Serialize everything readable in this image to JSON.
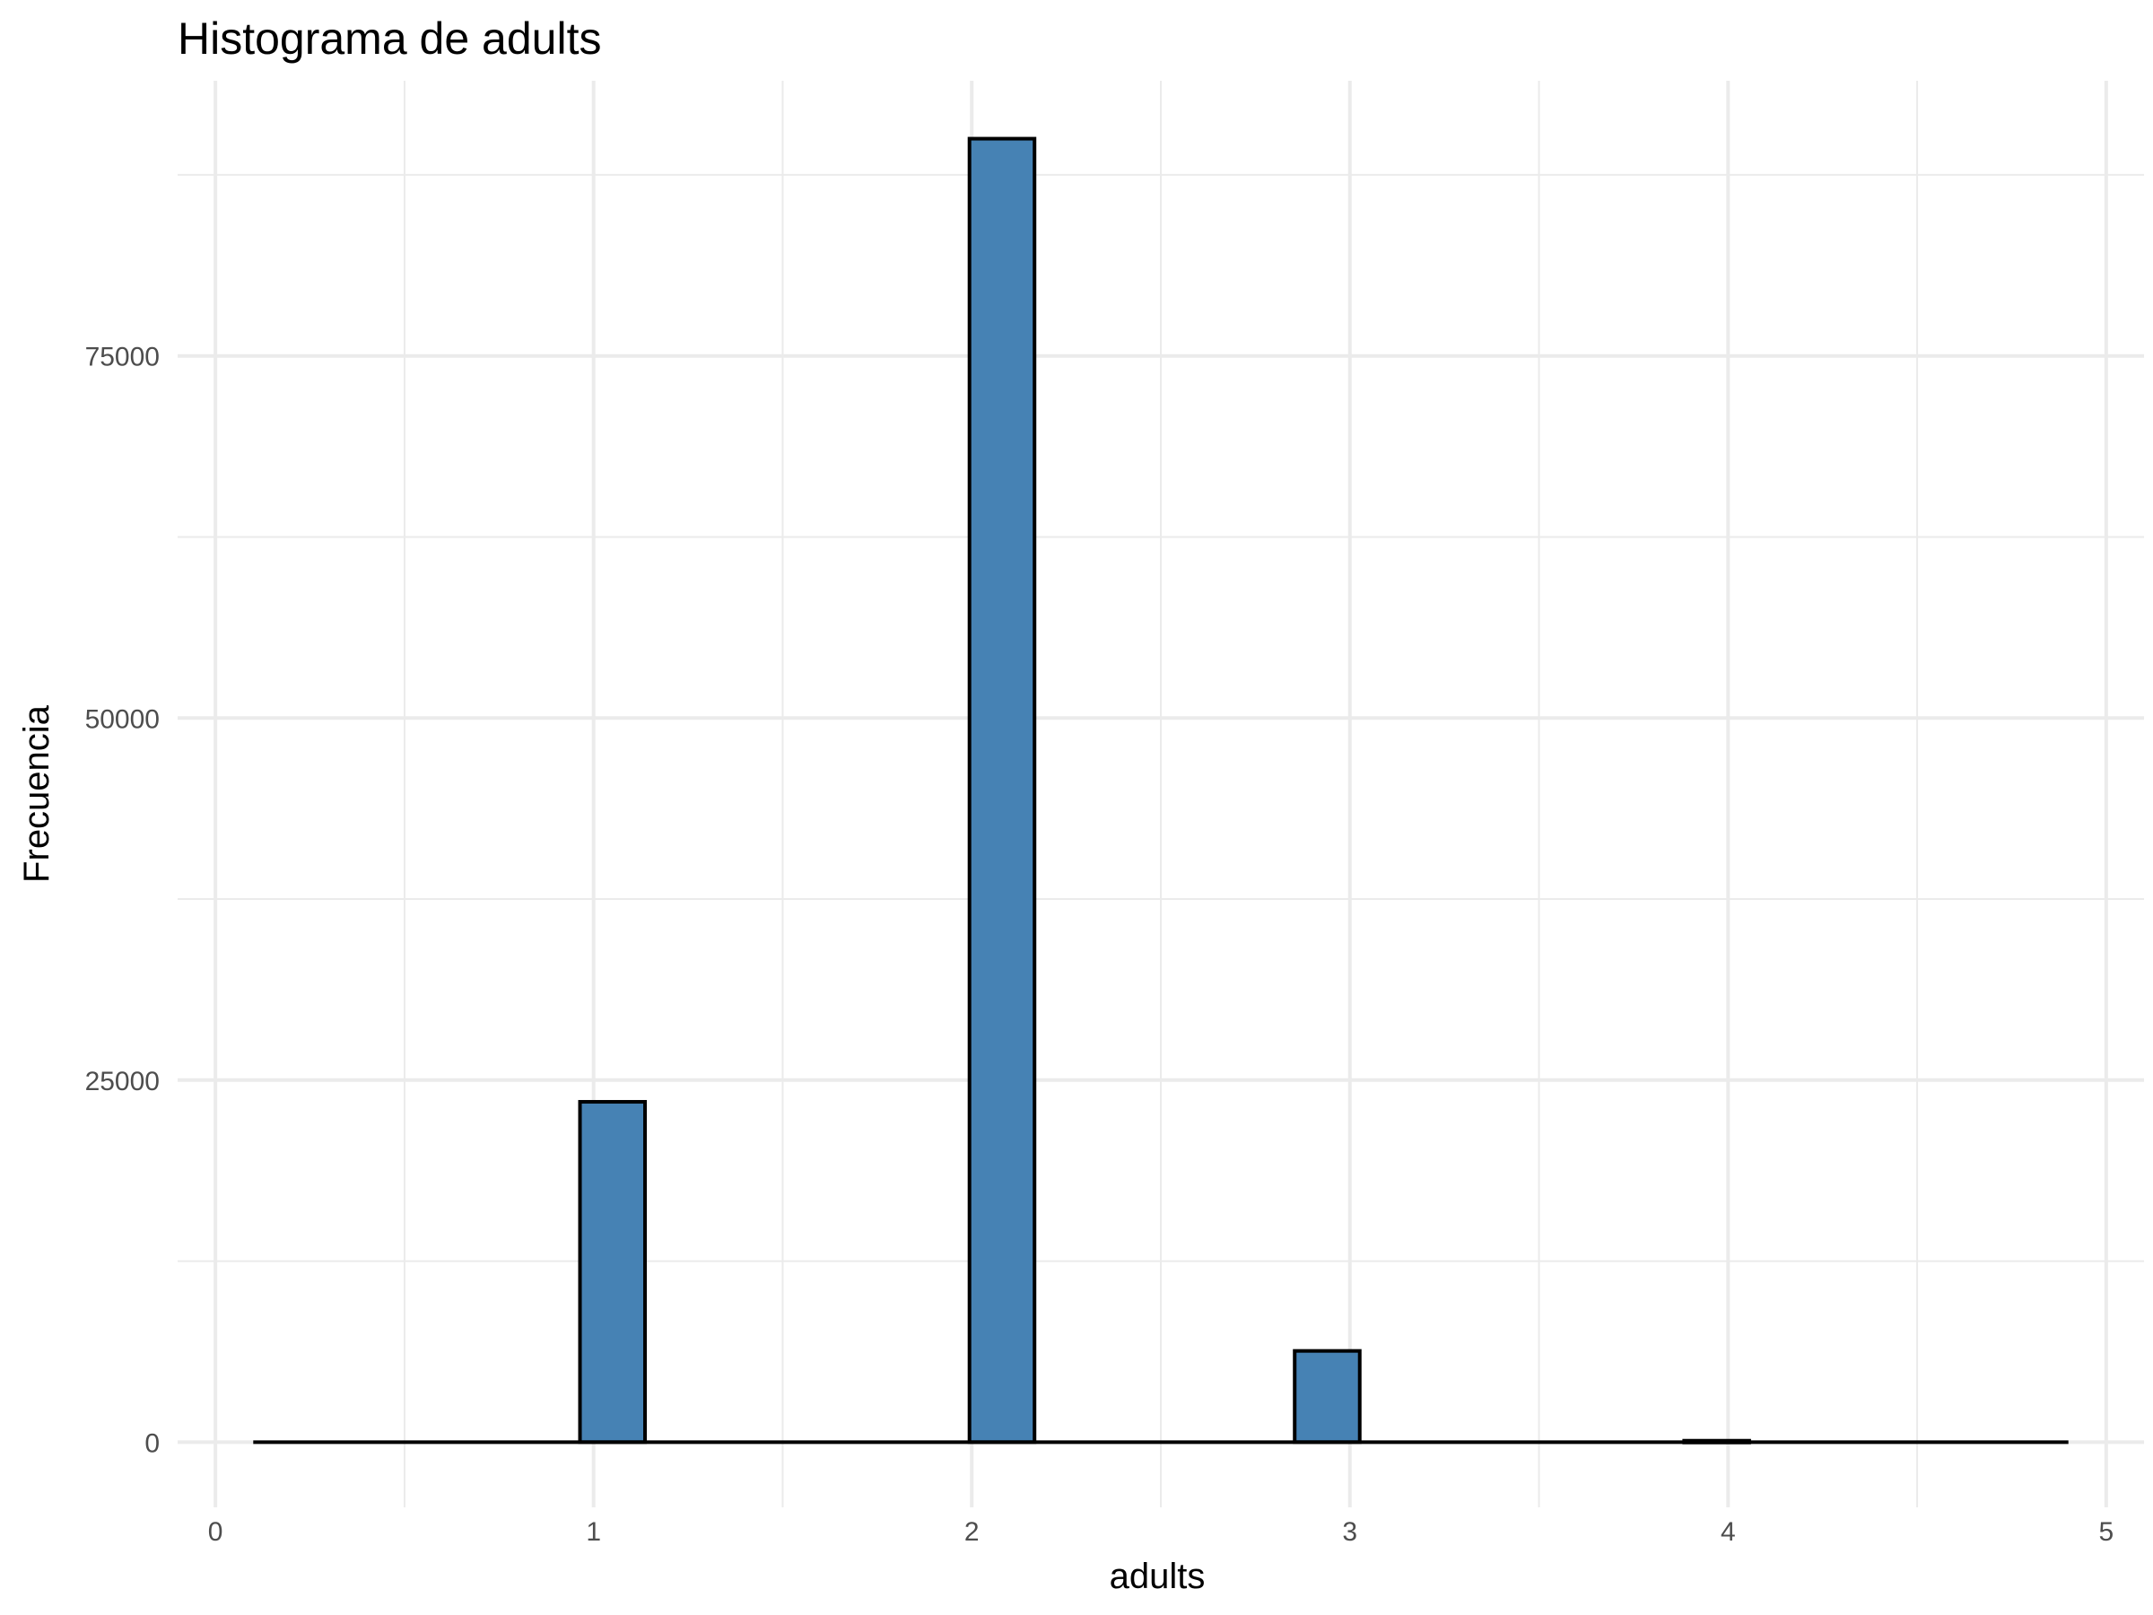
{
  "chart_data": {
    "type": "bar",
    "title": "Histograma de adults",
    "xlabel": "adults",
    "ylabel": "Frecuencia",
    "xlim": [
      -0.1,
      5.1
    ],
    "ylim": [
      -4500,
      94000
    ],
    "x_ticks": [
      0,
      1,
      2,
      3,
      4,
      5
    ],
    "x_tick_labels": [
      "0",
      "1",
      "2",
      "3",
      "4",
      "5"
    ],
    "x_minor_ticks": [
      0.5,
      1.5,
      2.5,
      3.5,
      4.5
    ],
    "y_ticks": [
      0,
      25000,
      50000,
      75000
    ],
    "y_tick_labels": [
      "0",
      "25000",
      "50000",
      "75000"
    ],
    "y_minor_ticks": [
      12500,
      37500,
      62500,
      87500
    ],
    "grid": true,
    "bin_width": 0.172,
    "bin_range": [
      0.1,
      4.9
    ],
    "bins": [
      {
        "center": 1.05,
        "count": 23500
      },
      {
        "center": 2.08,
        "count": 90000
      },
      {
        "center": 2.94,
        "count": 6300
      },
      {
        "center": 3.97,
        "count": 100
      }
    ],
    "colors": {
      "fill": "#4682b4",
      "stroke": "#000000",
      "grid": "#ebebeb",
      "tick_text": "#4d4d4d"
    }
  }
}
